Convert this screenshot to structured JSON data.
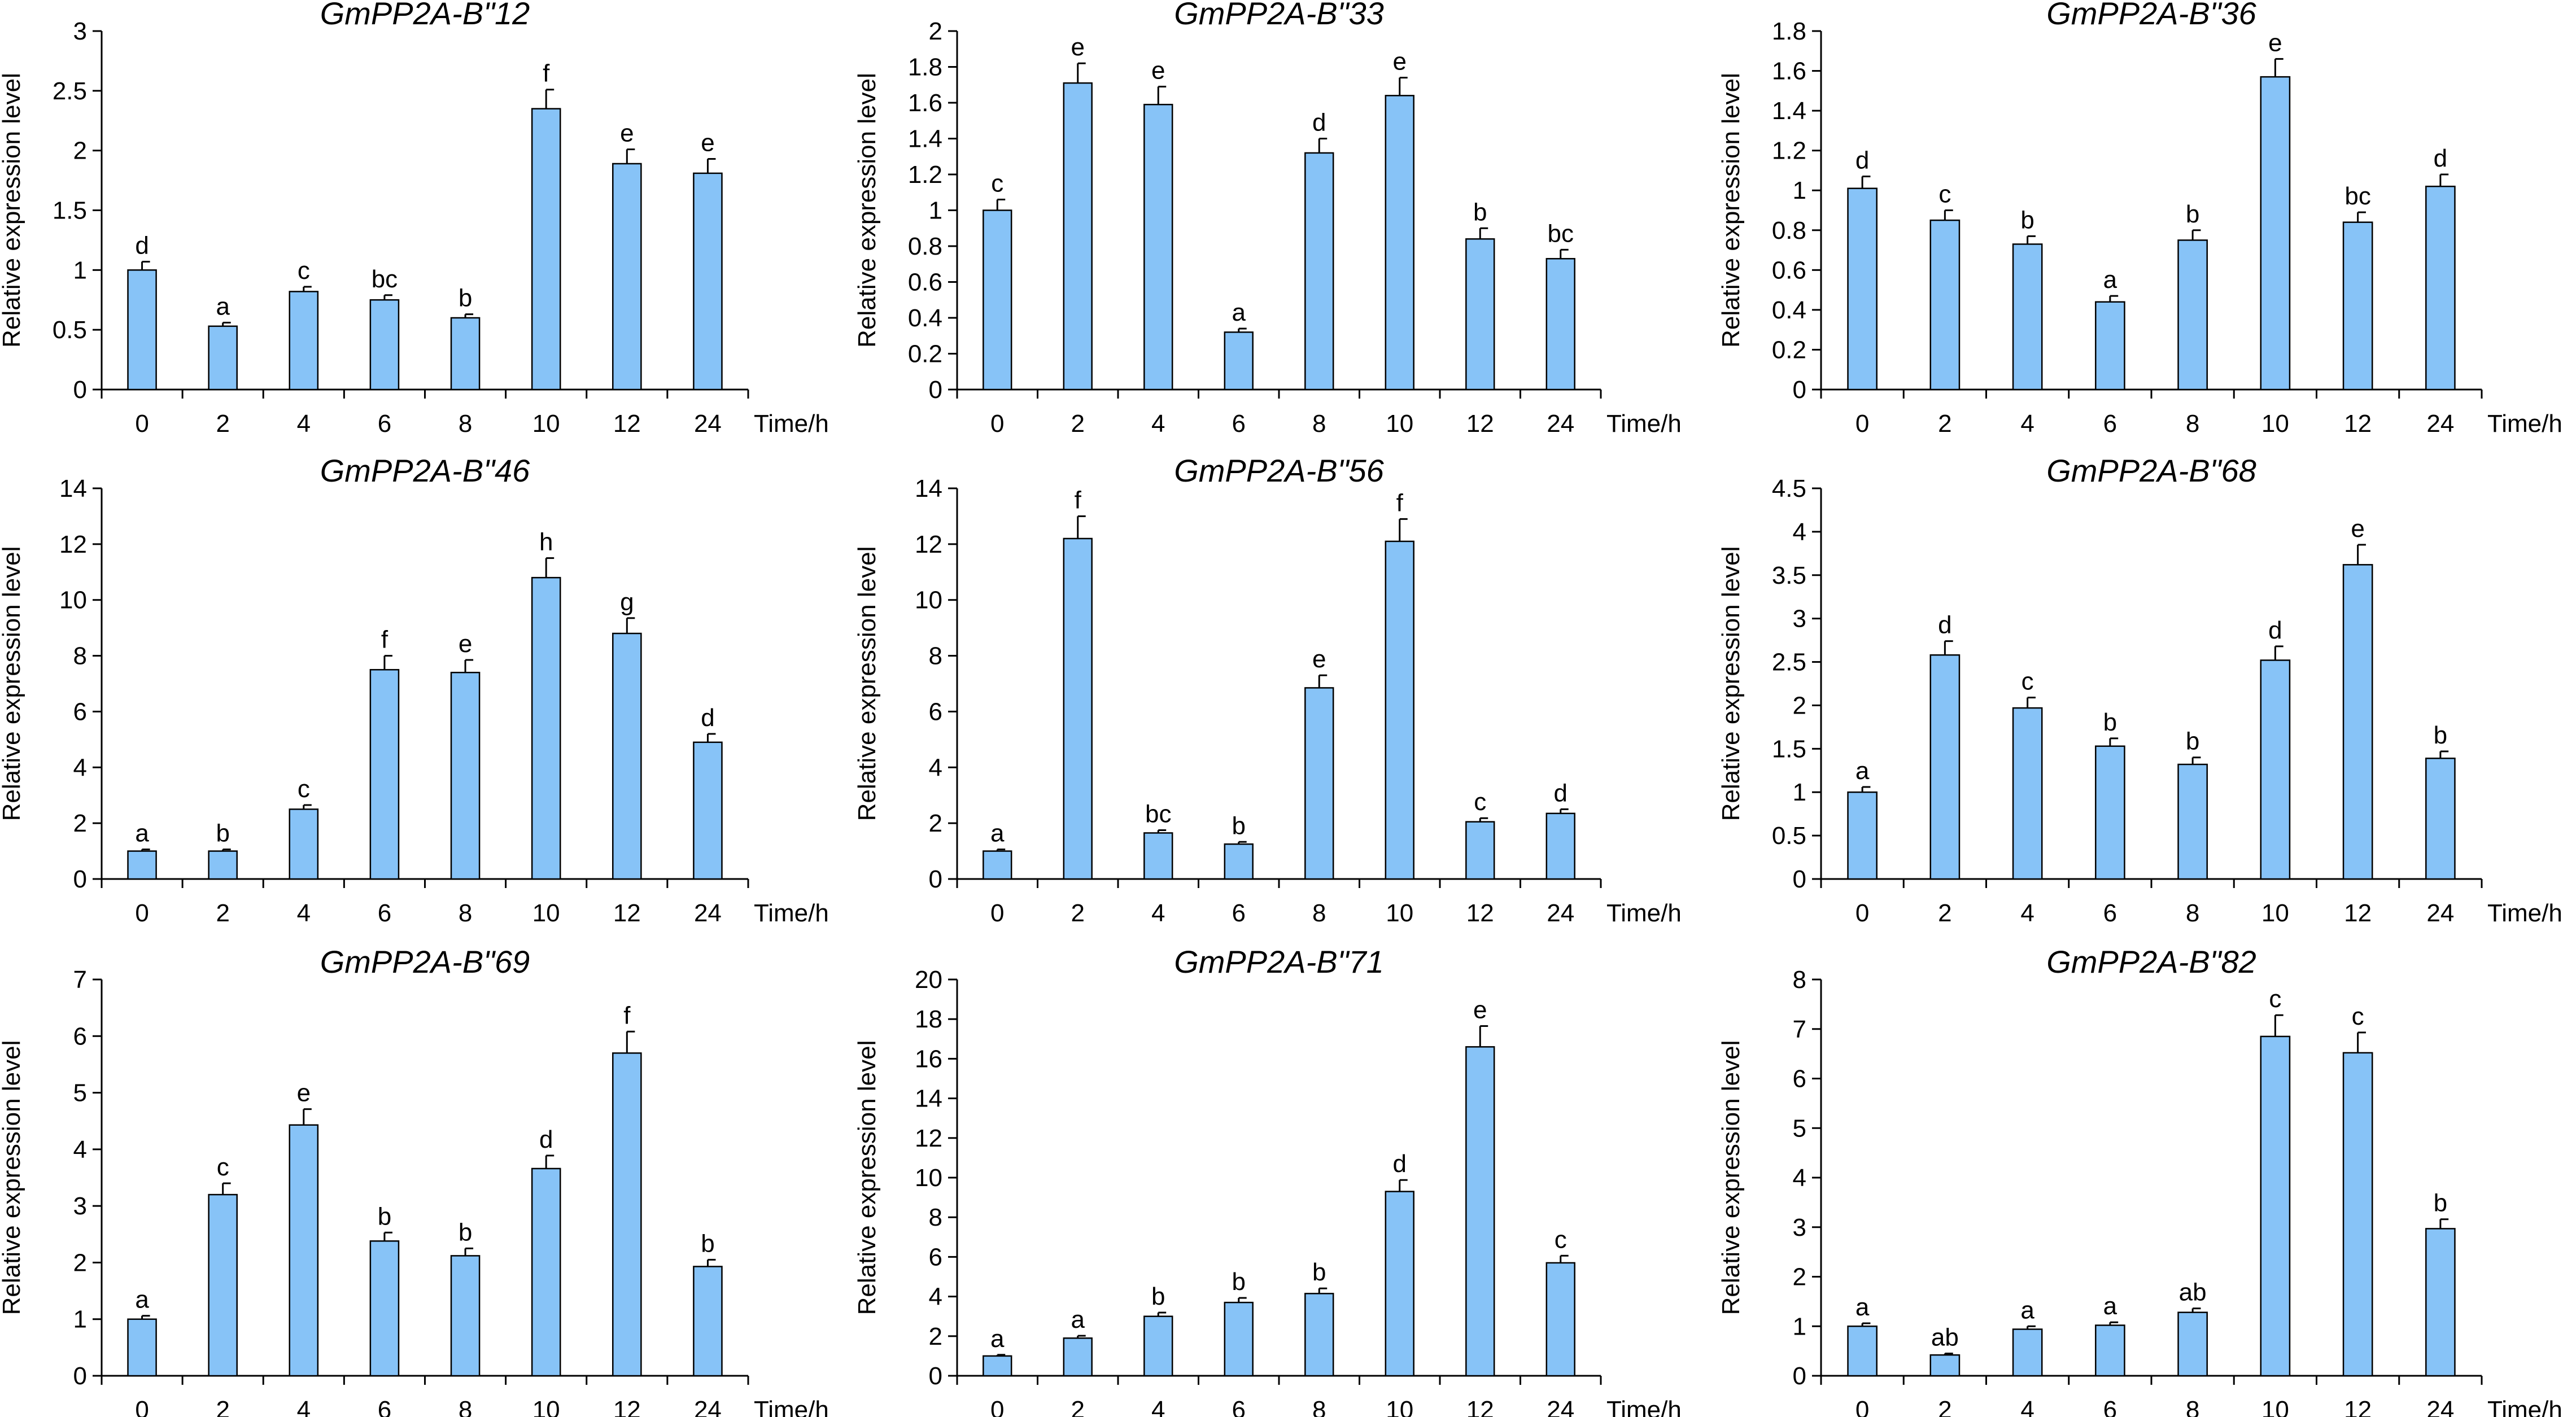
{
  "chart_data": [
    {
      "type": "bar",
      "title": "GmPP2A-B\"12",
      "ylabel": "Relative expression level",
      "xlabel": "Time/h",
      "categories": [
        "0",
        "2",
        "4",
        "6",
        "8",
        "10",
        "12",
        "24"
      ],
      "ylim": [
        0,
        3
      ],
      "yticks": [
        "0",
        "0.5",
        "1",
        "1.5",
        "2",
        "2.5",
        "3"
      ],
      "values": [
        1.0,
        0.53,
        0.82,
        0.75,
        0.6,
        2.35,
        1.89,
        1.81
      ],
      "errors": [
        0.07,
        0.03,
        0.04,
        0.04,
        0.03,
        0.16,
        0.12,
        0.12
      ],
      "labels": [
        "d",
        "a",
        "c",
        "bc",
        "b",
        "f",
        "e",
        "e"
      ],
      "color": "#87c3f7"
    },
    {
      "type": "bar",
      "title": "GmPP2A-B\"33",
      "ylabel": "Relative expression level",
      "xlabel": "Time/h",
      "categories": [
        "0",
        "2",
        "4",
        "6",
        "8",
        "10",
        "12",
        "24"
      ],
      "ylim": [
        0,
        2
      ],
      "yticks": [
        "0",
        "0.2",
        "0.4",
        "0.6",
        "0.8",
        "1",
        "1.2",
        "1.4",
        "1.6",
        "1.8",
        "2"
      ],
      "values": [
        1.0,
        1.71,
        1.59,
        0.32,
        1.32,
        1.64,
        0.84,
        0.73
      ],
      "errors": [
        0.06,
        0.11,
        0.1,
        0.02,
        0.08,
        0.1,
        0.06,
        0.05
      ],
      "labels": [
        "c",
        "e",
        "e",
        "a",
        "d",
        "e",
        "b",
        "bc"
      ],
      "color": "#87c3f7"
    },
    {
      "type": "bar",
      "title": "GmPP2A-B\"36",
      "ylabel": "Relative expression level",
      "xlabel": "Time/h",
      "categories": [
        "0",
        "2",
        "4",
        "6",
        "8",
        "10",
        "12",
        "24"
      ],
      "ylim": [
        0,
        1.8
      ],
      "yticks": [
        "0",
        "0.2",
        "0.4",
        "0.6",
        "0.8",
        "1",
        "1.2",
        "1.4",
        "1.6",
        "1.8"
      ],
      "values": [
        1.01,
        0.85,
        0.73,
        0.44,
        0.75,
        1.57,
        0.84,
        1.02
      ],
      "errors": [
        0.06,
        0.05,
        0.04,
        0.03,
        0.05,
        0.09,
        0.05,
        0.06
      ],
      "labels": [
        "d",
        "c",
        "b",
        "a",
        "b",
        "e",
        "bc",
        "d"
      ],
      "color": "#87c3f7"
    },
    {
      "type": "bar",
      "title": "GmPP2A-B\"46",
      "ylabel": "Relative expression level",
      "xlabel": "Time/h",
      "categories": [
        "0",
        "2",
        "4",
        "6",
        "8",
        "10",
        "12",
        "24"
      ],
      "ylim": [
        0,
        14
      ],
      "yticks": [
        "0",
        "2",
        "4",
        "6",
        "8",
        "10",
        "12",
        "14"
      ],
      "values": [
        1.0,
        1.0,
        2.5,
        7.5,
        7.4,
        10.8,
        8.8,
        4.9
      ],
      "errors": [
        0.06,
        0.06,
        0.15,
        0.5,
        0.45,
        0.7,
        0.55,
        0.3
      ],
      "labels": [
        "a",
        "b",
        "c",
        "f",
        "e",
        "h",
        "g",
        "d"
      ],
      "color": "#87c3f7"
    },
    {
      "type": "bar",
      "title": "GmPP2A-B\"56",
      "ylabel": "Relative expression level",
      "xlabel": "Time/h",
      "categories": [
        "0",
        "2",
        "4",
        "6",
        "8",
        "10",
        "12",
        "24"
      ],
      "ylim": [
        0,
        14
      ],
      "yticks": [
        "0",
        "2",
        "4",
        "6",
        "8",
        "10",
        "12",
        "14"
      ],
      "values": [
        1.0,
        12.2,
        1.65,
        1.25,
        6.85,
        12.1,
        2.05,
        2.35
      ],
      "errors": [
        0.06,
        0.8,
        0.1,
        0.08,
        0.45,
        0.8,
        0.13,
        0.15
      ],
      "labels": [
        "a",
        "f",
        "bc",
        "b",
        "e",
        "f",
        "c",
        "d"
      ],
      "color": "#87c3f7"
    },
    {
      "type": "bar",
      "title": "GmPP2A-B\"68",
      "ylabel": "Relative expression level",
      "xlabel": "Time/h",
      "categories": [
        "0",
        "2",
        "4",
        "6",
        "8",
        "10",
        "12",
        "24"
      ],
      "ylim": [
        0,
        4.5
      ],
      "yticks": [
        "0",
        "0.5",
        "1",
        "1.5",
        "2",
        "2.5",
        "3",
        "3.5",
        "4",
        "4.5"
      ],
      "values": [
        1.0,
        2.58,
        1.97,
        1.53,
        1.32,
        2.52,
        3.62,
        1.39
      ],
      "errors": [
        0.06,
        0.16,
        0.12,
        0.09,
        0.08,
        0.16,
        0.23,
        0.08
      ],
      "labels": [
        "a",
        "d",
        "c",
        "b",
        "b",
        "d",
        "e",
        "b"
      ],
      "color": "#87c3f7"
    },
    {
      "type": "bar",
      "title": "GmPP2A-B\"69",
      "ylabel": "Relative expression level",
      "xlabel": "Time/h",
      "categories": [
        "0",
        "2",
        "4",
        "6",
        "8",
        "10",
        "12",
        "24"
      ],
      "ylim": [
        0,
        7
      ],
      "yticks": [
        "0",
        "1",
        "2",
        "3",
        "4",
        "5",
        "6",
        "7"
      ],
      "values": [
        1.0,
        3.2,
        4.43,
        2.38,
        2.12,
        3.66,
        5.7,
        1.93
      ],
      "errors": [
        0.06,
        0.2,
        0.28,
        0.15,
        0.13,
        0.23,
        0.38,
        0.12
      ],
      "labels": [
        "a",
        "c",
        "e",
        "b",
        "b",
        "d",
        "f",
        "b"
      ],
      "color": "#87c3f7"
    },
    {
      "type": "bar",
      "title": "GmPP2A-B\"71",
      "ylabel": "Relative expression level",
      "xlabel": "Time/h",
      "categories": [
        "0",
        "2",
        "4",
        "6",
        "8",
        "10",
        "12",
        "24"
      ],
      "ylim": [
        0,
        20
      ],
      "yticks": [
        "0",
        "2",
        "4",
        "6",
        "8",
        "10",
        "12",
        "14",
        "16",
        "18",
        "20"
      ],
      "values": [
        1.0,
        1.9,
        3.0,
        3.7,
        4.15,
        9.3,
        16.6,
        5.7
      ],
      "errors": [
        0.06,
        0.12,
        0.19,
        0.23,
        0.26,
        0.58,
        1.05,
        0.36
      ],
      "labels": [
        "a",
        "a",
        "b",
        "b",
        "b",
        "d",
        "e",
        "c"
      ],
      "color": "#87c3f7"
    },
    {
      "type": "bar",
      "title": "GmPP2A-B\"82",
      "ylabel": "Relative expression level",
      "xlabel": "Time/h",
      "categories": [
        "0",
        "2",
        "4",
        "6",
        "8",
        "10",
        "12",
        "24"
      ],
      "ylim": [
        0,
        8
      ],
      "yticks": [
        "0",
        "1",
        "2",
        "3",
        "4",
        "5",
        "6",
        "7",
        "8"
      ],
      "values": [
        1.0,
        0.42,
        0.94,
        1.02,
        1.28,
        6.85,
        6.52,
        2.97
      ],
      "errors": [
        0.06,
        0.03,
        0.06,
        0.06,
        0.08,
        0.43,
        0.41,
        0.19
      ],
      "labels": [
        "a",
        "ab",
        "a",
        "a",
        "ab",
        "c",
        "c",
        "b"
      ],
      "color": "#87c3f7"
    }
  ]
}
